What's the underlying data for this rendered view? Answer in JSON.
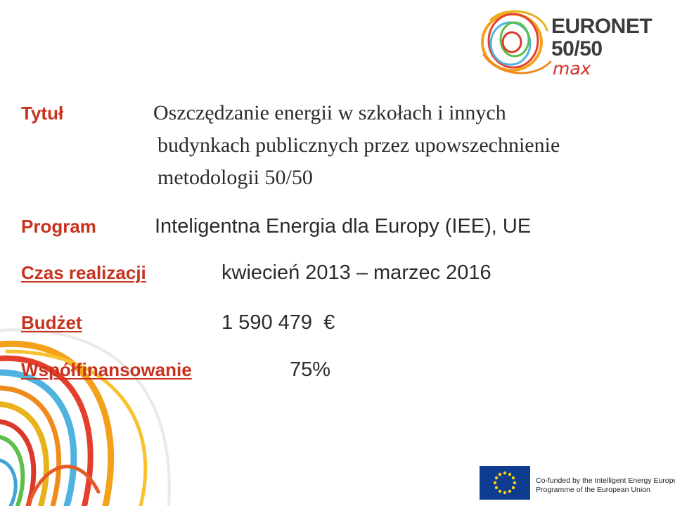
{
  "logo": {
    "line1": "EURONET",
    "line2": "50/50",
    "line3": "max"
  },
  "fields": {
    "title_label": "Tytuł",
    "title_lines": [
      "Oszczędzanie energii  w szkołach i innych",
      "budynkach publicznych przez upowszechnienie",
      "metodologii 50/50"
    ],
    "program_label": "Program",
    "program_value": "Inteligentna Energia dla Europy (IEE), UE",
    "duration_label": "Czas realizacji",
    "duration_value": "kwiecień 2013 – marzec 2016",
    "budget_label": "Budżet",
    "budget_value": "1 590 479  €",
    "cofinancing_label": "Współfinansowanie",
    "cofinancing_value": "75%"
  },
  "footer": {
    "eu_line1": "Co-funded by the Intelligent Energy Europe",
    "eu_line2": "Programme of the European Union"
  },
  "colors": {
    "label_red": "#c8321f",
    "text_dark": "#2b2b2b",
    "eu_blue": "#0e3d8f",
    "eu_star": "#ffd200"
  }
}
